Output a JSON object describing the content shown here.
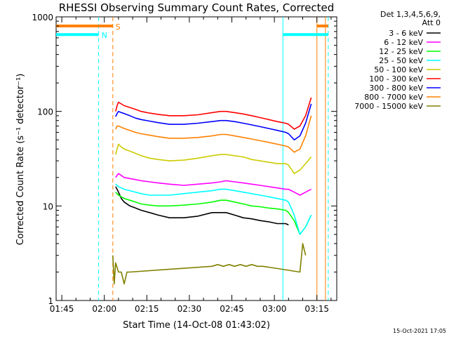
{
  "chart_data": {
    "type": "line",
    "title": "RHESSI Observing Summary Count Rates, Corrected",
    "xlabel": "Start Time (14-Oct-08 01:43:02)",
    "ylabel": "Corrected Count Rate (s⁻¹ detector⁻¹)",
    "xunits": "minutes since 01:43:02",
    "xlim": [
      0,
      99
    ],
    "ylim": [
      1,
      1000
    ],
    "yscale": "log",
    "x_ticks": [
      {
        "x": 2,
        "label": "01:45"
      },
      {
        "x": 17,
        "label": "02:00"
      },
      {
        "x": 32,
        "label": "02:15"
      },
      {
        "x": 47,
        "label": "02:30"
      },
      {
        "x": 62,
        "label": "02:45"
      },
      {
        "x": 77,
        "label": "03:00"
      },
      {
        "x": 92,
        "label": "03:15"
      }
    ],
    "y_ticks": [
      {
        "y": 1,
        "label": "1"
      },
      {
        "y": 10,
        "label": "10"
      },
      {
        "y": 100,
        "label": "100"
      },
      {
        "y": 1000,
        "label": "1000"
      }
    ],
    "legend": {
      "header": [
        "Det 1,3,4,5,6,9,",
        "Att 0"
      ],
      "placement": "right"
    },
    "series": [
      {
        "name": "3 - 6 keV",
        "color": "#000000",
        "x": [
          21,
          21.5,
          22,
          23,
          24,
          26,
          28,
          30,
          33,
          36,
          40,
          45,
          50,
          55,
          58,
          60,
          63,
          66,
          69,
          72,
          75,
          78,
          81,
          82
        ],
        "y": [
          16,
          15,
          14,
          12,
          11,
          10,
          9.5,
          9,
          8.5,
          8,
          7.5,
          7.5,
          7.8,
          8.5,
          8.5,
          8.5,
          8,
          7.5,
          7.3,
          7,
          6.8,
          6.5,
          6.5,
          6.3
        ]
      },
      {
        "name": "6 - 12 keV",
        "color": "#ff00ff",
        "x": [
          21,
          21.5,
          22,
          23,
          24,
          26,
          28,
          30,
          33,
          36,
          40,
          45,
          50,
          55,
          58,
          60,
          63,
          66,
          69,
          72,
          75,
          78,
          81,
          82,
          84,
          86,
          88,
          90
        ],
        "y": [
          20,
          21,
          22,
          21,
          20,
          19.5,
          19,
          18.5,
          18,
          17.5,
          17,
          16.5,
          17,
          17.5,
          18,
          18.5,
          18,
          17.5,
          17,
          16.5,
          16,
          15.5,
          15,
          15,
          14,
          13,
          14,
          15
        ]
      },
      {
        "name": "12 - 25 keV",
        "color": "#00ff00",
        "x": [
          21,
          21.5,
          22,
          23,
          24,
          26,
          28,
          30,
          33,
          36,
          40,
          45,
          50,
          55,
          58,
          60,
          63,
          66,
          69,
          72,
          75,
          78,
          81,
          82,
          84,
          86,
          88,
          90
        ],
        "y": [
          14,
          13.5,
          13,
          12.5,
          12,
          11.5,
          11,
          10.5,
          10.2,
          10,
          10,
          10.2,
          10.5,
          11,
          11.5,
          11.5,
          11,
          10.5,
          10,
          9.8,
          9.5,
          9.3,
          9,
          8.5,
          7,
          5,
          6,
          8
        ]
      },
      {
        "name": "25 - 50 keV",
        "color": "#00ffff",
        "x": [
          21,
          21.5,
          22,
          23,
          24,
          26,
          28,
          30,
          33,
          36,
          40,
          45,
          50,
          55,
          58,
          60,
          63,
          66,
          69,
          72,
          75,
          78,
          81,
          82,
          84,
          86,
          88,
          90
        ],
        "y": [
          17,
          16.5,
          16,
          15.5,
          15,
          14.5,
          14,
          13.5,
          13,
          13,
          13,
          13.5,
          14,
          14.5,
          15,
          15,
          14.5,
          14,
          13.5,
          13,
          12.5,
          12,
          11.5,
          11,
          8,
          5,
          6,
          8
        ]
      },
      {
        "name": "50 - 100 keV",
        "color": "#cccc00",
        "x": [
          21,
          21.5,
          22,
          23,
          24,
          26,
          28,
          30,
          33,
          36,
          40,
          45,
          50,
          55,
          58,
          60,
          63,
          66,
          69,
          72,
          75,
          78,
          81,
          82,
          84,
          86,
          88,
          90
        ],
        "y": [
          35,
          40,
          45,
          42,
          40,
          38,
          36,
          34,
          32,
          31,
          30,
          30.5,
          32,
          34,
          35,
          35,
          34,
          33,
          31,
          30,
          29,
          28,
          28,
          27,
          22,
          24,
          28,
          33
        ]
      },
      {
        "name": "100 - 300 keV",
        "color": "#ff0000",
        "x": [
          21,
          21.5,
          22,
          23,
          24,
          26,
          28,
          30,
          33,
          36,
          40,
          45,
          50,
          55,
          58,
          60,
          63,
          66,
          69,
          72,
          75,
          78,
          81,
          82,
          84,
          86,
          88,
          90
        ],
        "y": [
          100,
          115,
          125,
          120,
          115,
          110,
          105,
          100,
          96,
          93,
          90,
          90,
          92,
          97,
          100,
          100,
          97,
          94,
          90,
          86,
          82,
          78,
          75,
          73,
          65,
          70,
          90,
          140
        ]
      },
      {
        "name": "300 - 800 keV",
        "color": "#0000ff",
        "x": [
          21,
          21.5,
          22,
          23,
          24,
          26,
          28,
          30,
          33,
          36,
          40,
          45,
          50,
          55,
          58,
          60,
          63,
          66,
          69,
          72,
          75,
          78,
          81,
          82,
          84,
          86,
          88,
          90
        ],
        "y": [
          88,
          95,
          100,
          97,
          95,
          90,
          85,
          82,
          79,
          76,
          73,
          73,
          75,
          78,
          80,
          80,
          78,
          75,
          72,
          69,
          66,
          63,
          60,
          58,
          50,
          55,
          75,
          120
        ]
      },
      {
        "name": "800 - 7000 keV",
        "color": "#ff8000",
        "x": [
          21,
          21.5,
          22,
          23,
          24,
          26,
          28,
          30,
          33,
          36,
          40,
          45,
          50,
          55,
          58,
          60,
          63,
          66,
          69,
          72,
          75,
          78,
          81,
          82,
          84,
          86,
          88,
          90
        ],
        "y": [
          65,
          70,
          70,
          68,
          66,
          63,
          60,
          58,
          56,
          54,
          52,
          52,
          53,
          55,
          57,
          57,
          55,
          53,
          51,
          49,
          47,
          45,
          43,
          42,
          37,
          40,
          55,
          90
        ]
      },
      {
        "name": "7000 - 15000 keV",
        "color": "#808000",
        "x": [
          20,
          20.5,
          21,
          22,
          23,
          24,
          25,
          26,
          55,
          57,
          59,
          61,
          63,
          65,
          67,
          69,
          71,
          73,
          86,
          87,
          88
        ],
        "y": [
          3,
          1.5,
          2.5,
          2,
          2,
          1.5,
          2,
          2,
          2.3,
          2.4,
          2.3,
          2.4,
          2.3,
          2.4,
          2.3,
          2.4,
          2.3,
          2.3,
          2,
          4,
          3
        ]
      }
    ],
    "annotations": [
      {
        "label": "S",
        "x": [
          0,
          20
        ],
        "y": 800,
        "color": "#ff8000"
      },
      {
        "label": "N",
        "x": [
          0,
          15
        ],
        "y": 650,
        "color": "#00ffff"
      }
    ],
    "vertical_lines": [
      {
        "x": 15,
        "color": "#00ffff",
        "style": "dashed"
      },
      {
        "x": 20,
        "color": "#ff8000",
        "style": "dashed"
      },
      {
        "x": 80,
        "color": "#00ffff",
        "style": "solid"
      },
      {
        "x": 92,
        "color": "#ff8000",
        "style": "solid"
      },
      {
        "x": 95,
        "color": "#ff8000",
        "style": "solid"
      },
      {
        "x": 96,
        "color": "#00ffff",
        "style": "dashed"
      }
    ],
    "end_segments": [
      {
        "x": [
          80,
          96
        ],
        "y": 650,
        "color": "#00ffff"
      },
      {
        "x": [
          92,
          96
        ],
        "y": 800,
        "color": "#ff8000"
      }
    ],
    "grid": false
  },
  "footer": {
    "timestamp": "15-Oct-2021 17:05"
  }
}
